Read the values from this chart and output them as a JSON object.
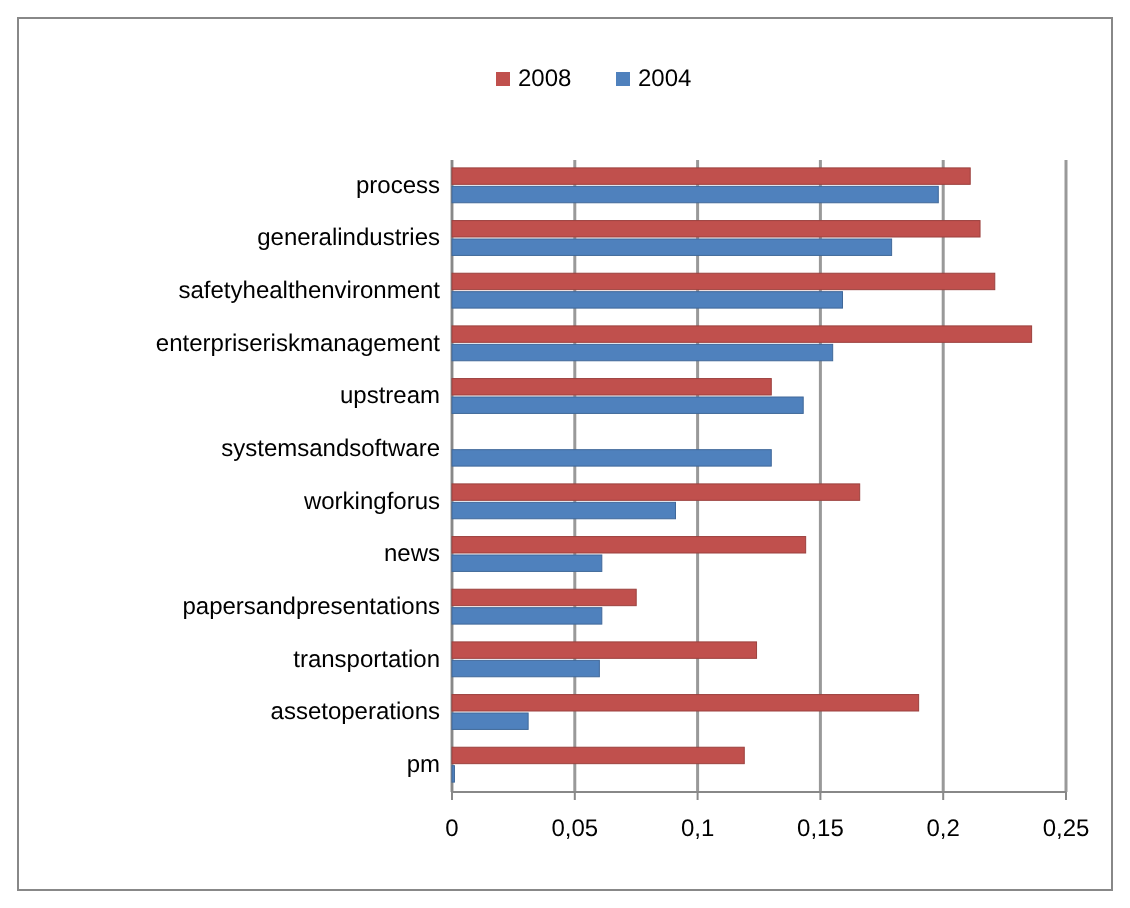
{
  "chart_data": {
    "type": "bar",
    "orientation": "horizontal",
    "categories": [
      "process",
      "generalindustries",
      "safetyhealthenvironment",
      "enterpriseriskmanagement",
      "upstream",
      "systemsandsoftware",
      "workingforus",
      "news",
      "papersandpresentations",
      "transportation",
      "assetoperations",
      "pm"
    ],
    "series": [
      {
        "name": "2008",
        "color": "#c0504d",
        "values": [
          0.211,
          0.215,
          0.221,
          0.236,
          0.13,
          0,
          0.166,
          0.144,
          0.075,
          0.124,
          0.19,
          0.119
        ]
      },
      {
        "name": "2004",
        "color": "#4f81bd",
        "values": [
          0.198,
          0.179,
          0.159,
          0.155,
          0.143,
          0.13,
          0.091,
          0.061,
          0.061,
          0.06,
          0.031,
          0.001
        ]
      }
    ],
    "xlim": [
      0,
      0.25
    ],
    "xticks": [
      {
        "value": 0,
        "label": "0"
      },
      {
        "value": 0.05,
        "label": "0,05"
      },
      {
        "value": 0.1,
        "label": "0,1"
      },
      {
        "value": 0.15,
        "label": "0,15"
      },
      {
        "value": 0.2,
        "label": "0,2"
      },
      {
        "value": 0.25,
        "label": "0,25"
      }
    ],
    "grid": "x",
    "legend": "top"
  }
}
